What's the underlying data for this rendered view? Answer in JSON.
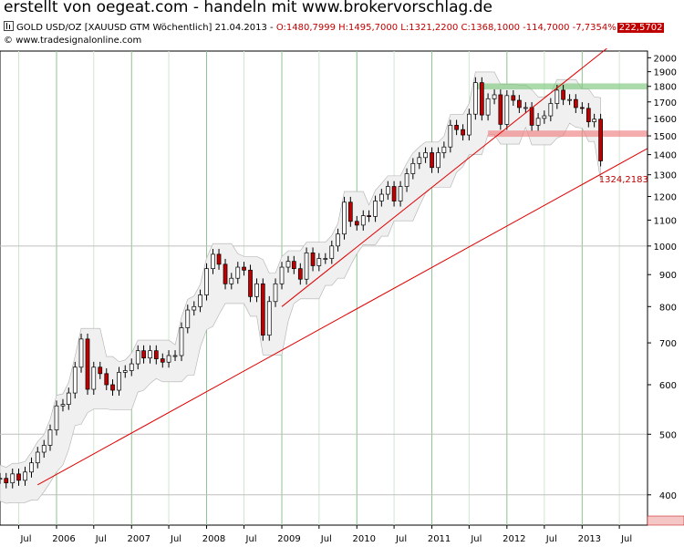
{
  "banner": "erstellt von oegeat.com - handeln mit www.brokervorschlag.de",
  "header": {
    "instrument": "GOLD USD/OZ [XAUUSD GTM  Wöchentlich] 21.04.2013 - ",
    "ohlc": "O:1480,7999 H:1495,7000 L:1321,2200 C:1368,1000 -114,7000 -7,7354%",
    "price_tag": "222,5702"
  },
  "source": "www.tradesignalonline.com",
  "chart_data": {
    "type": "line",
    "title": "GOLD USD/OZ [XAUUSD GTM  Wöchentlich] 21.04.2013",
    "y_scale": "log",
    "ylim": [
      370,
      2050
    ],
    "y_ticks": [
      400,
      500,
      600,
      700,
      800,
      900,
      1000,
      1100,
      1200,
      1300,
      1400,
      1500,
      1600,
      1700,
      1800,
      1900,
      2000
    ],
    "x_range": [
      "2005-04-01",
      "2013-11-15"
    ],
    "x_ticks": [
      {
        "date": "2005-07-01",
        "label": "Jul"
      },
      {
        "date": "2006-01-01",
        "label": "2006"
      },
      {
        "date": "2006-07-01",
        "label": "Jul"
      },
      {
        "date": "2007-01-01",
        "label": "2007"
      },
      {
        "date": "2007-07-01",
        "label": "Jul"
      },
      {
        "date": "2008-01-01",
        "label": "2008"
      },
      {
        "date": "2008-07-01",
        "label": "Jul"
      },
      {
        "date": "2009-01-01",
        "label": "2009"
      },
      {
        "date": "2009-07-01",
        "label": "Jul"
      },
      {
        "date": "2010-01-01",
        "label": "2010"
      },
      {
        "date": "2010-07-01",
        "label": "Jul"
      },
      {
        "date": "2011-01-01",
        "label": "2011"
      },
      {
        "date": "2011-07-01",
        "label": "Jul"
      },
      {
        "date": "2012-01-01",
        "label": "2012"
      },
      {
        "date": "2012-07-01",
        "label": "Jul"
      },
      {
        "date": "2013-01-01",
        "label": "2013"
      },
      {
        "date": "2013-07-01",
        "label": "Jul"
      }
    ],
    "grid": true,
    "series": [
      {
        "style": "candlestick",
        "points": [
          [
            "2005-04-01",
            425
          ],
          [
            "2005-05-01",
            418
          ],
          [
            "2005-06-01",
            432
          ],
          [
            "2005-07-01",
            422
          ],
          [
            "2005-08-01",
            435
          ],
          [
            "2005-09-01",
            450
          ],
          [
            "2005-10-01",
            468
          ],
          [
            "2005-11-01",
            480
          ],
          [
            "2005-12-01",
            508
          ],
          [
            "2006-01-01",
            555
          ],
          [
            "2006-02-01",
            558
          ],
          [
            "2006-03-01",
            582
          ],
          [
            "2006-04-01",
            640
          ],
          [
            "2006-05-01",
            710
          ],
          [
            "2006-06-01",
            590
          ],
          [
            "2006-07-01",
            640
          ],
          [
            "2006-08-01",
            625
          ],
          [
            "2006-09-01",
            600
          ],
          [
            "2006-10-01",
            588
          ],
          [
            "2006-11-01",
            628
          ],
          [
            "2006-12-01",
            632
          ],
          [
            "2007-01-01",
            648
          ],
          [
            "2007-02-01",
            680
          ],
          [
            "2007-03-01",
            662
          ],
          [
            "2007-04-01",
            680
          ],
          [
            "2007-05-01",
            660
          ],
          [
            "2007-06-01",
            652
          ],
          [
            "2007-07-01",
            668
          ],
          [
            "2007-08-01",
            668
          ],
          [
            "2007-09-01",
            740
          ],
          [
            "2007-10-01",
            790
          ],
          [
            "2007-11-01",
            800
          ],
          [
            "2007-12-01",
            835
          ],
          [
            "2008-01-01",
            920
          ],
          [
            "2008-02-01",
            970
          ],
          [
            "2008-03-01",
            935
          ],
          [
            "2008-04-01",
            870
          ],
          [
            "2008-05-01",
            888
          ],
          [
            "2008-06-01",
            925
          ],
          [
            "2008-07-01",
            915
          ],
          [
            "2008-08-01",
            830
          ],
          [
            "2008-09-01",
            870
          ],
          [
            "2008-10-01",
            720
          ],
          [
            "2008-11-01",
            815
          ],
          [
            "2008-12-01",
            870
          ],
          [
            "2009-01-01",
            925
          ],
          [
            "2009-02-01",
            945
          ],
          [
            "2009-03-01",
            920
          ],
          [
            "2009-04-01",
            885
          ],
          [
            "2009-05-01",
            975
          ],
          [
            "2009-06-01",
            930
          ],
          [
            "2009-07-01",
            955
          ],
          [
            "2009-08-01",
            955
          ],
          [
            "2009-09-01",
            1000
          ],
          [
            "2009-10-01",
            1045
          ],
          [
            "2009-11-01",
            1175
          ],
          [
            "2009-12-01",
            1095
          ],
          [
            "2010-01-01",
            1080
          ],
          [
            "2010-02-01",
            1118
          ],
          [
            "2010-03-01",
            1115
          ],
          [
            "2010-04-01",
            1180
          ],
          [
            "2010-05-01",
            1210
          ],
          [
            "2010-06-01",
            1245
          ],
          [
            "2010-07-01",
            1180
          ],
          [
            "2010-08-01",
            1245
          ],
          [
            "2010-09-01",
            1305
          ],
          [
            "2010-10-01",
            1355
          ],
          [
            "2010-11-01",
            1385
          ],
          [
            "2010-12-01",
            1410
          ],
          [
            "2011-01-01",
            1335
          ],
          [
            "2011-02-01",
            1410
          ],
          [
            "2011-03-01",
            1440
          ],
          [
            "2011-04-01",
            1560
          ],
          [
            "2011-05-01",
            1535
          ],
          [
            "2011-06-01",
            1505
          ],
          [
            "2011-07-01",
            1625
          ],
          [
            "2011-08-01",
            1825
          ],
          [
            "2011-09-01",
            1620
          ],
          [
            "2011-10-01",
            1720
          ],
          [
            "2011-11-01",
            1745
          ],
          [
            "2011-12-01",
            1565
          ],
          [
            "2012-01-01",
            1740
          ],
          [
            "2012-02-01",
            1710
          ],
          [
            "2012-03-01",
            1665
          ],
          [
            "2012-04-01",
            1665
          ],
          [
            "2012-05-01",
            1560
          ],
          [
            "2012-06-01",
            1600
          ],
          [
            "2012-07-01",
            1615
          ],
          [
            "2012-08-01",
            1690
          ],
          [
            "2012-09-01",
            1775
          ],
          [
            "2012-10-01",
            1715
          ],
          [
            "2012-11-01",
            1715
          ],
          [
            "2012-12-01",
            1665
          ],
          [
            "2013-01-01",
            1660
          ],
          [
            "2013-02-01",
            1580
          ],
          [
            "2013-03-01",
            1595
          ],
          [
            "2013-04-01",
            1368
          ]
        ]
      }
    ],
    "trendlines": [
      {
        "from": [
          "2005-10-01",
          415
        ],
        "to": [
          "2013-11-15",
          1432
        ]
      },
      {
        "from": [
          "2009-01-01",
          800
        ],
        "to": [
          "2013-05-01",
          2070
        ]
      }
    ],
    "bands": [
      {
        "range": [
          1780,
          1820
        ],
        "color": "#7ec87e",
        "from": "2011-08-01"
      },
      {
        "range": [
          1495,
          1530
        ],
        "color": "#f08080",
        "from": "2011-10-01"
      }
    ],
    "annotations": [
      {
        "text": "1324,2183",
        "x": "2013-04-15",
        "y": 1324
      }
    ],
    "colors": {
      "up": "#ffffff",
      "down": "#c00000",
      "trend": "#e00000",
      "grid_v": "#9ec89e",
      "band_fill": "#f0f0f0"
    }
  }
}
